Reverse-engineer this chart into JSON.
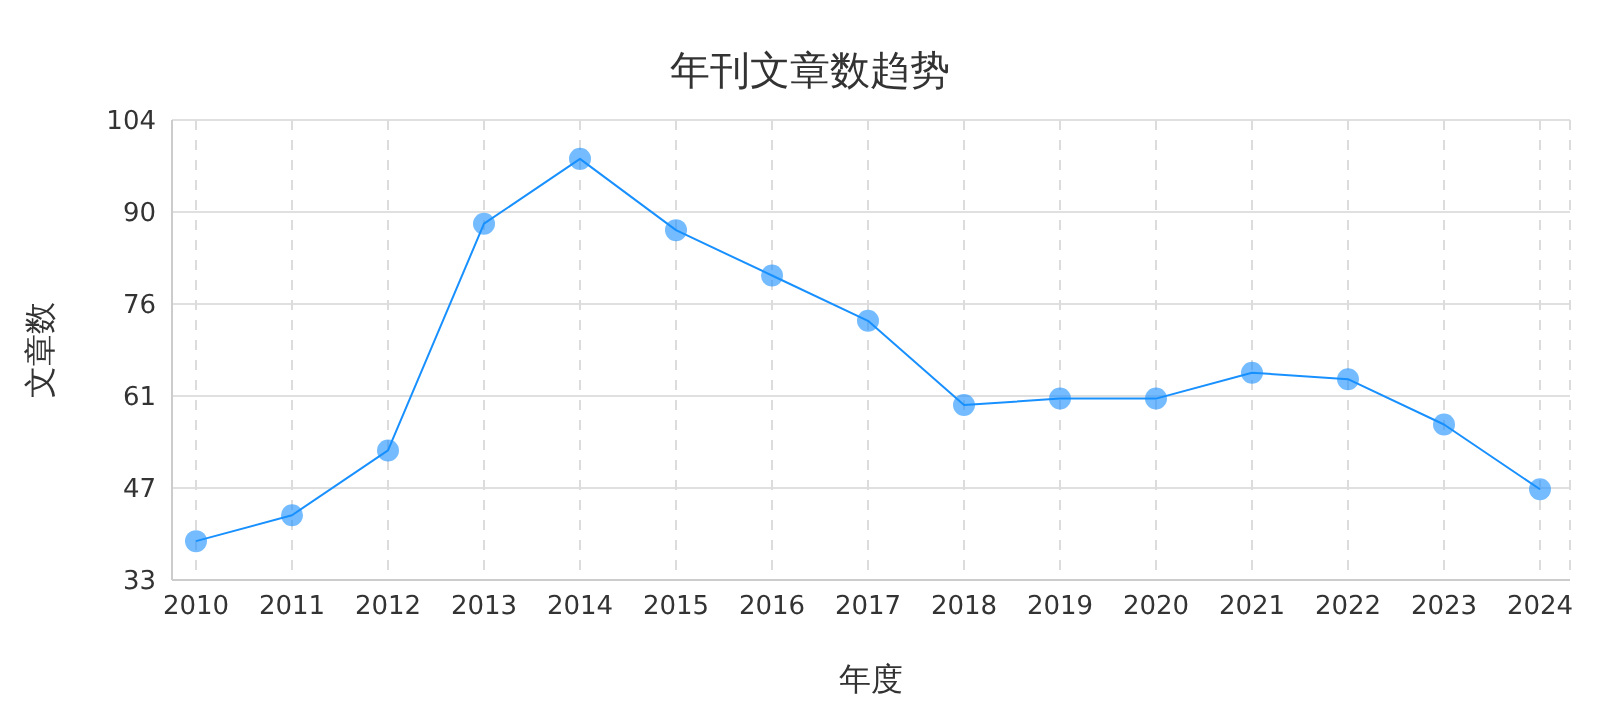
{
  "chart_data": {
    "type": "line",
    "title": "年刊文章数趋势",
    "xlabel": "年度",
    "ylabel": "文章数",
    "categories": [
      "2010",
      "2011",
      "2012",
      "2013",
      "2014",
      "2015",
      "2016",
      "2017",
      "2018",
      "2019",
      "2020",
      "2021",
      "2022",
      "2023",
      "2024"
    ],
    "series": [
      {
        "color": "#1890ff",
        "values": [
          39,
          43,
          53,
          88,
          98,
          87,
          80,
          73,
          60,
          61,
          61,
          65,
          64,
          57,
          47
        ]
      }
    ],
    "ylim": [
      33,
      104
    ],
    "yticks": [
      33,
      {
        "value": 47.2,
        "label": "47"
      },
      {
        "value": 61.4,
        "label": "61"
      },
      {
        "value": 75.6,
        "label": "76"
      },
      {
        "value": 89.8,
        "label": "90"
      },
      104
    ],
    "grid": true,
    "marker": "circle",
    "line_style": "solid"
  }
}
